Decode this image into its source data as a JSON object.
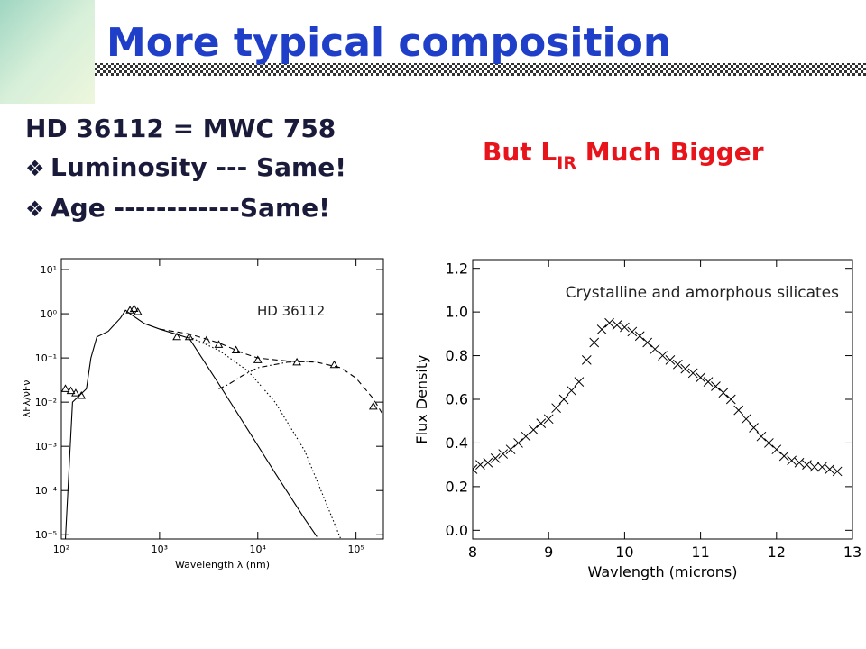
{
  "slide": {
    "title": "More typical composition",
    "star": "HD 36112 = MWC 758",
    "bullets": [
      "Luminosity --- Same!",
      "Age ------------Same!"
    ],
    "note": [
      "But L",
      "IR",
      " Much Bigger"
    ]
  },
  "chart_data": [
    {
      "type": "line",
      "xscale": "log",
      "yscale": "log",
      "annotation": "HD 36112",
      "xlabel": "Wavelength  λ  (nm)",
      "ylabel": "λFλ/νFν",
      "xlim": [
        100,
        190000
      ],
      "ylim": [
        8e-06,
        17.6
      ],
      "xticks": [
        {
          "value": 100,
          "label": "10²"
        },
        {
          "value": 1000,
          "label": "10³"
        },
        {
          "value": 10000,
          "label": "10⁴"
        },
        {
          "value": 100000,
          "label": "10⁵"
        }
      ],
      "yticks": [
        {
          "value": 10,
          "label": "10¹"
        },
        {
          "value": 1,
          "label": "10⁰"
        },
        {
          "value": 0.1,
          "label": "10⁻¹"
        },
        {
          "value": 0.01,
          "label": "10⁻²"
        },
        {
          "value": 0.001,
          "label": "10⁻³"
        },
        {
          "value": 0.0001,
          "label": "10⁻⁴"
        },
        {
          "value": 1e-05,
          "label": "10⁻⁵"
        }
      ],
      "series": [
        {
          "color": "#000000",
          "line": "solid",
          "x": [
            110,
            130,
            180,
            200,
            230,
            300,
            400,
            450,
            500,
            700,
            1000,
            2000,
            4000,
            8000,
            15000,
            30000,
            40000
          ],
          "values": [
            8e-06,
            0.01,
            0.02,
            0.1,
            0.3,
            0.4,
            0.8,
            1.2,
            1.0,
            0.6,
            0.45,
            0.28,
            0.026,
            0.0023,
            0.00025,
            2.3e-05,
            9e-06
          ]
        },
        {
          "color": "#000000",
          "line": "dashed",
          "x": [
            1000,
            2000,
            4000,
            7000,
            10000,
            20000,
            40000,
            70000,
            100000,
            150000,
            190000
          ],
          "values": [
            0.45,
            0.35,
            0.22,
            0.13,
            0.1,
            0.085,
            0.08,
            0.06,
            0.035,
            0.012,
            0.005
          ]
        },
        {
          "color": "#000000",
          "line": "dotted",
          "x": [
            2000,
            4000,
            8000,
            15000,
            30000,
            50000,
            70000
          ],
          "values": [
            0.3,
            0.15,
            0.05,
            0.01,
            0.0008,
            5e-05,
            8e-06
          ]
        },
        {
          "color": "#000000",
          "line": "dashdot",
          "x": [
            4000,
            5000,
            7000,
            10000,
            20000,
            40000
          ],
          "values": [
            0.02,
            0.025,
            0.04,
            0.06,
            0.08,
            0.085
          ]
        },
        {
          "color": "#000000",
          "marker": "triangle",
          "x": [
            110,
            125,
            140,
            160,
            500,
            550,
            600,
            1500,
            2000,
            3000,
            4000,
            6000,
            10000,
            25000,
            60000,
            150000
          ],
          "values": [
            0.02,
            0.018,
            0.016,
            0.014,
            1.2,
            1.3,
            1.1,
            0.3,
            0.3,
            0.25,
            0.2,
            0.15,
            0.09,
            0.08,
            0.07,
            0.008
          ]
        }
      ]
    },
    {
      "type": "scatter",
      "annotation": "Crystalline and amorphous silicates",
      "xlabel": "Wavlength (microns)",
      "ylabel": "Flux Density",
      "xlim": [
        8,
        13
      ],
      "ylim": [
        -0.04,
        1.24
      ],
      "xticks": [
        8,
        9,
        10,
        11,
        12,
        13
      ],
      "yticks": [
        {
          "value": 0,
          "label": "0.0"
        },
        0.2,
        0.4,
        0.6,
        0.8,
        {
          "value": 1,
          "label": "1.0"
        },
        1.2
      ],
      "series": [
        {
          "color": "#000000",
          "marker": "x",
          "x": [
            8.0,
            8.1,
            8.2,
            8.3,
            8.4,
            8.5,
            8.6,
            8.7,
            8.8,
            8.9,
            9.0,
            9.1,
            9.2,
            9.3,
            9.4,
            9.5,
            9.6,
            9.7,
            9.8,
            9.9,
            10.0,
            10.1,
            10.2,
            10.3,
            10.4,
            10.5,
            10.6,
            10.7,
            10.8,
            10.9,
            11.0,
            11.1,
            11.2,
            11.3,
            11.4,
            11.5,
            11.6,
            11.7,
            11.8,
            11.9,
            12.0,
            12.1,
            12.2,
            12.3,
            12.4,
            12.5,
            12.6,
            12.7,
            12.8
          ],
          "values": [
            0.28,
            0.3,
            0.31,
            0.33,
            0.35,
            0.37,
            0.4,
            0.43,
            0.46,
            0.49,
            0.51,
            0.56,
            0.6,
            0.64,
            0.68,
            0.78,
            0.86,
            0.92,
            0.95,
            0.94,
            0.93,
            0.91,
            0.89,
            0.86,
            0.83,
            0.8,
            0.78,
            0.76,
            0.74,
            0.72,
            0.7,
            0.68,
            0.66,
            0.63,
            0.6,
            0.55,
            0.51,
            0.47,
            0.43,
            0.4,
            0.37,
            0.34,
            0.32,
            0.31,
            0.3,
            0.29,
            0.29,
            0.28,
            0.27
          ]
        }
      ]
    }
  ]
}
